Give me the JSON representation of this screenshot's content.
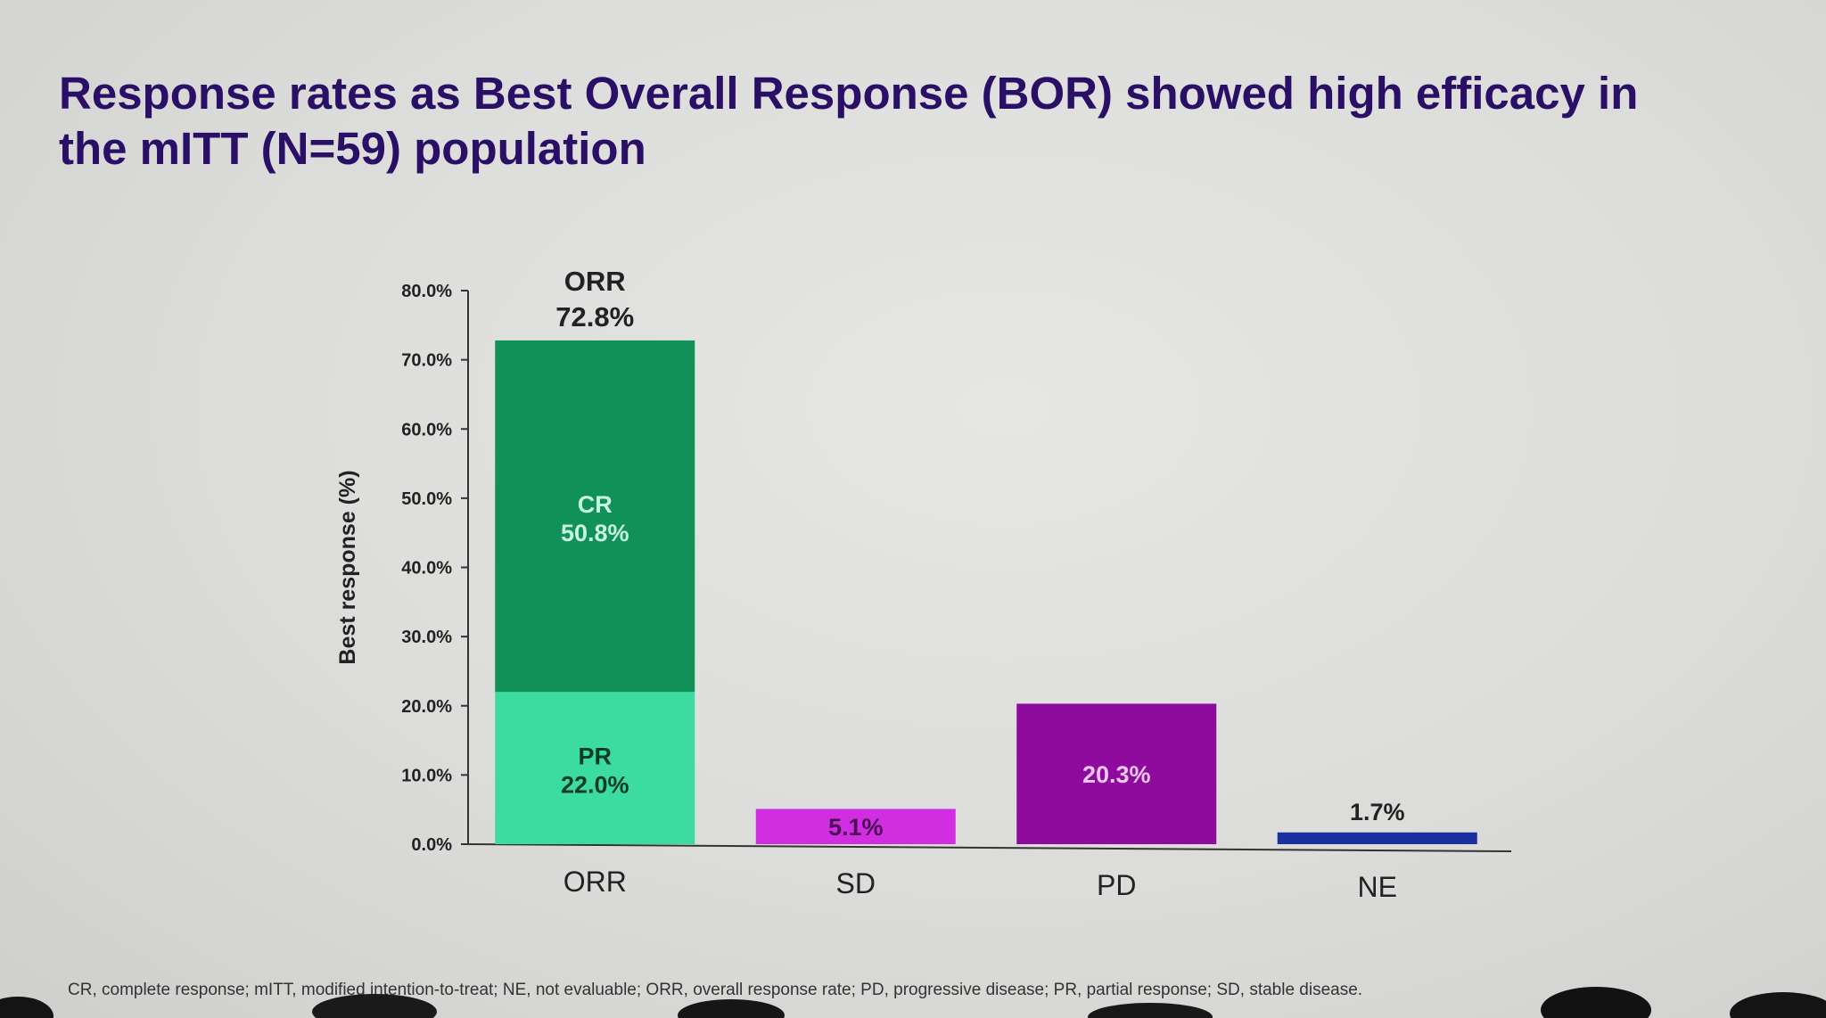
{
  "slide": {
    "title_line1": "Response rates as Best Overall Response (BOR) showed high efficacy in",
    "title_line2": "the mITT (N=59) population",
    "footnote": "CR, complete response; mITT, modified intention-to-treat; NE, not evaluable; ORR, overall response rate; PD, progressive disease; PR, partial response; SD, stable disease."
  },
  "chart_data": {
    "type": "bar",
    "stacked": true,
    "ylabel": "Best response (%)",
    "xlabel": "",
    "ylim": [
      0,
      80
    ],
    "y_ticks": [
      "0.0%",
      "10.0%",
      "20.0%",
      "30.0%",
      "40.0%",
      "50.0%",
      "60.0%",
      "70.0%",
      "80.0%"
    ],
    "grid": false,
    "legend": "none",
    "categories": [
      "ORR",
      "SD",
      "PD",
      "NE"
    ],
    "bars": [
      {
        "category": "ORR",
        "segments": [
          {
            "name": "PR",
            "value": 22.0,
            "label": "22.0%",
            "color": "#3cdba0",
            "text_color": "#0a3a28"
          },
          {
            "name": "CR",
            "value": 50.8,
            "label": "50.8%",
            "color": "#109157",
            "text_color": "#c8f7df"
          }
        ],
        "total_name": "ORR",
        "total_label": "72.8%"
      },
      {
        "category": "SD",
        "segments": [
          {
            "name": "",
            "value": 5.1,
            "label": "5.1%",
            "color": "#d02ee0",
            "text_color": "#4a0a55"
          }
        ]
      },
      {
        "category": "PD",
        "segments": [
          {
            "name": "",
            "value": 20.3,
            "label": "20.3%",
            "color": "#8e0b9e",
            "text_color": "#f2c7f7"
          }
        ]
      },
      {
        "category": "NE",
        "segments": [
          {
            "name": "",
            "value": 1.7,
            "label": "1.7%",
            "color": "#1c2fa0",
            "text_color": "#222222",
            "label_above": true
          }
        ]
      }
    ]
  }
}
